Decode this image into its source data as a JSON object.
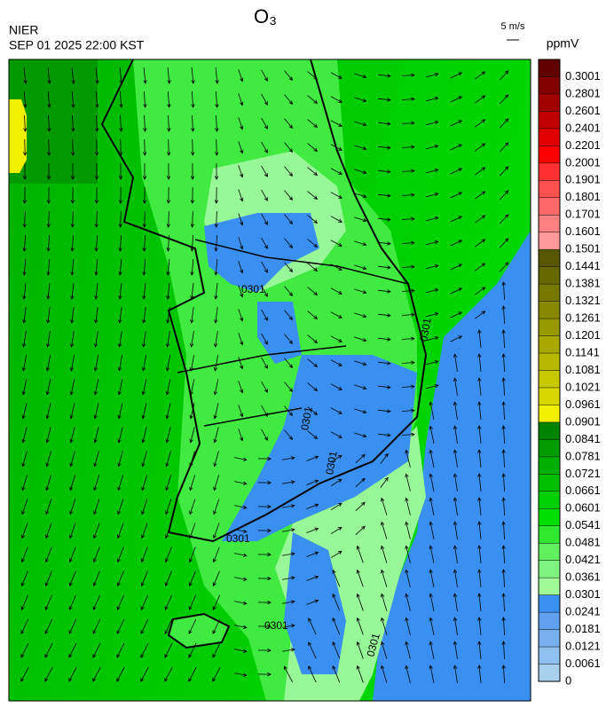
{
  "header": {
    "title": "O₃",
    "source": "NIER",
    "datetime": "SEP 01 2025 22:00 KST",
    "wind_scale": "5 m/s"
  },
  "colorbar": {
    "unit": "ppmV",
    "levels": [
      0,
      0.0061,
      0.0121,
      0.0181,
      0.0241,
      0.0301,
      0.0361,
      0.0421,
      0.0481,
      0.0541,
      0.0601,
      0.0661,
      0.0721,
      0.0781,
      0.0841,
      0.0901,
      0.0961,
      0.1021,
      0.1081,
      0.1141,
      0.1201,
      0.1261,
      0.1321,
      0.1381,
      0.1441,
      0.1501,
      0.1601,
      0.1701,
      0.1801,
      0.1901,
      0.2001,
      0.2201,
      0.2401,
      0.2601,
      0.2801,
      0.3001
    ],
    "colors": [
      "#a8d0ec",
      "#90c0ee",
      "#78b0ee",
      "#60a0ee",
      "#3a90f0",
      "#a0fa98",
      "#80f480",
      "#60f060",
      "#30e830",
      "#00e000",
      "#00d000",
      "#00c000",
      "#00b000",
      "#009c00",
      "#008400",
      "#f0f000",
      "#d8d800",
      "#c8c800",
      "#b8b800",
      "#a8a800",
      "#989800",
      "#888800",
      "#787800",
      "#686800",
      "#585800",
      "#ff9898",
      "#ff8080",
      "#ff6868",
      "#ff5050",
      "#ff3030",
      "#ff0000",
      "#e00000",
      "#c00000",
      "#a00000",
      "#800000",
      "#600000"
    ]
  },
  "map": {
    "contour_labels": [
      "0301",
      "0301",
      "0301",
      "0301",
      "0301",
      "0301",
      "0301"
    ]
  }
}
